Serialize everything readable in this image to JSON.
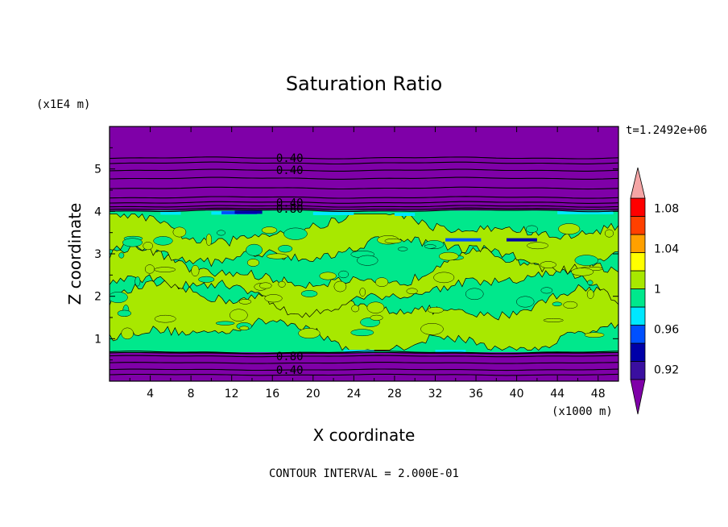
{
  "chart_data": {
    "type": "heatmap",
    "title": "Saturation Ratio",
    "xlabel": "X coordinate",
    "ylabel": "Z coordinate",
    "x_unit": "(x1000 m)",
    "y_unit": "(x1E4 m)",
    "time_label": "t=1.2492e+06",
    "footer": "CONTOUR INTERVAL = 2.000E-01",
    "xlim": [
      0,
      50
    ],
    "ylim": [
      0,
      6
    ],
    "x_ticks": [
      4,
      8,
      12,
      16,
      20,
      24,
      28,
      32,
      36,
      40,
      44,
      48
    ],
    "y_ticks": [
      1,
      2,
      3,
      4,
      5
    ],
    "contour_labels": [
      {
        "text": "0.40",
        "x": 17.7,
        "z": 5.26
      },
      {
        "text": "0.40",
        "x": 17.7,
        "z": 4.97
      },
      {
        "text": "0.40",
        "x": 17.7,
        "z": 4.21
      },
      {
        "text": "0.80",
        "x": 17.7,
        "z": 4.06
      },
      {
        "text": "0.80",
        "x": 17.7,
        "z": 0.59
      },
      {
        "text": "0.40",
        "x": 17.7,
        "z": 0.27
      }
    ],
    "upper_contours_z": [
      5.26,
      5.14,
      4.97,
      4.78,
      4.55,
      4.33,
      4.21,
      4.12,
      4.06
    ],
    "lower_contours_z": [
      0.66,
      0.59,
      0.43,
      0.27,
      0.15
    ],
    "moist_layer_z": [
      0.68,
      4.02
    ],
    "colorbar": {
      "levels": [
        0.92,
        0.94,
        0.96,
        0.98,
        1.0,
        1.02,
        1.04,
        1.06,
        1.08,
        1.1
      ],
      "colors": [
        "#3a0fa0",
        "#0000a8",
        "#0050ff",
        "#00e8ff",
        "#00e88c",
        "#a8e800",
        "#ffff00",
        "#ffa000",
        "#ff4000",
        "#ff0000"
      ],
      "under_color": "#7f00a8",
      "over_color": "#f5a5a5",
      "tick_labels": [
        "0.92",
        "0.96",
        "1",
        "1.04",
        "1.08"
      ]
    },
    "region_colors": {
      "dry": "#7f00a8",
      "sat_low": "#00e88c",
      "sat_high": "#a8e800",
      "trace_cyan": "#00e8ff",
      "trace_blue": "#0050ff",
      "trace_navy": "#0000a8"
    }
  }
}
